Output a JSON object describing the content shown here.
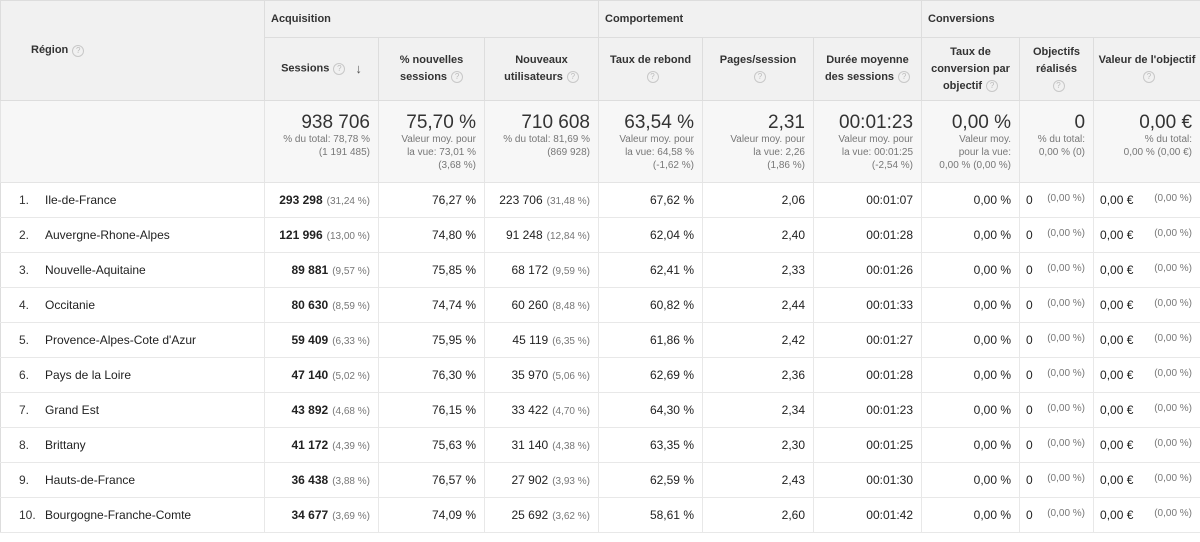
{
  "header": {
    "region_label": "Région",
    "groups": {
      "acquisition": "Acquisition",
      "comportement": "Comportement",
      "conversions": "Conversions"
    },
    "columns": {
      "sessions": "Sessions",
      "pct_new_sessions": "% nouvelles sessions",
      "new_users": "Nouveaux utilisateurs",
      "bounce_rate": "Taux de rebond",
      "pages_session": "Pages/session",
      "avg_duration": "Durée moyenne des sessions",
      "conversion_rate": "Taux de conversion par objectif",
      "goals_completed": "Objectifs réalisés",
      "goal_value": "Valeur de l'objectif"
    },
    "help_glyph": "?",
    "sort_glyph": "↓"
  },
  "totals": {
    "sessions": {
      "value": "938 706",
      "sub1": "% du total: 78,78 %",
      "sub2": "(1 191 485)"
    },
    "pct_new_sessions": {
      "value": "75,70 %",
      "sub1": "Valeur moy. pour",
      "sub2": "la vue: 73,01 %",
      "sub3": "(3,68 %)"
    },
    "new_users": {
      "value": "710 608",
      "sub1": "% du total: 81,69 %",
      "sub2": "(869 928)"
    },
    "bounce_rate": {
      "value": "63,54 %",
      "sub1": "Valeur moy. pour",
      "sub2": "la vue: 64,58 %",
      "sub3": "(-1,62 %)"
    },
    "pages_session": {
      "value": "2,31",
      "sub1": "Valeur moy. pour",
      "sub2": "la vue: 2,26",
      "sub3": "(1,86 %)"
    },
    "avg_duration": {
      "value": "00:01:23",
      "sub1": "Valeur moy. pour",
      "sub2": "la vue: 00:01:25",
      "sub3": "(-2,54 %)"
    },
    "conversion_rate": {
      "value": "0,00 %",
      "sub1": "Valeur moy.",
      "sub2": "pour la vue:",
      "sub3": "0,00 % (0,00 %)"
    },
    "goals_completed": {
      "value": "0",
      "sub1": "% du total:",
      "sub2": "0,00 % (0)"
    },
    "goal_value": {
      "value": "0,00 €",
      "sub1": "% du total:",
      "sub2": "0,00 % (0,00 €)"
    }
  },
  "rows": [
    {
      "idx": "1.",
      "region": "Ile-de-France",
      "sessions": "293 298",
      "sessions_pct": "(31,24 %)",
      "pct_new": "76,27 %",
      "new_users": "223 706",
      "new_users_pct": "(31,48 %)",
      "bounce": "67,62 %",
      "pages": "2,06",
      "duration": "00:01:07",
      "conv": "0,00 %",
      "goals": "0",
      "goals_pct": "(0,00 %)",
      "value": "0,00 €",
      "value_pct": "(0,00 %)"
    },
    {
      "idx": "2.",
      "region": "Auvergne-Rhone-Alpes",
      "sessions": "121 996",
      "sessions_pct": "(13,00 %)",
      "pct_new": "74,80 %",
      "new_users": "91 248",
      "new_users_pct": "(12,84 %)",
      "bounce": "62,04 %",
      "pages": "2,40",
      "duration": "00:01:28",
      "conv": "0,00 %",
      "goals": "0",
      "goals_pct": "(0,00 %)",
      "value": "0,00 €",
      "value_pct": "(0,00 %)"
    },
    {
      "idx": "3.",
      "region": "Nouvelle-Aquitaine",
      "sessions": "89 881",
      "sessions_pct": "(9,57 %)",
      "pct_new": "75,85 %",
      "new_users": "68 172",
      "new_users_pct": "(9,59 %)",
      "bounce": "62,41 %",
      "pages": "2,33",
      "duration": "00:01:26",
      "conv": "0,00 %",
      "goals": "0",
      "goals_pct": "(0,00 %)",
      "value": "0,00 €",
      "value_pct": "(0,00 %)"
    },
    {
      "idx": "4.",
      "region": "Occitanie",
      "sessions": "80 630",
      "sessions_pct": "(8,59 %)",
      "pct_new": "74,74 %",
      "new_users": "60 260",
      "new_users_pct": "(8,48 %)",
      "bounce": "60,82 %",
      "pages": "2,44",
      "duration": "00:01:33",
      "conv": "0,00 %",
      "goals": "0",
      "goals_pct": "(0,00 %)",
      "value": "0,00 €",
      "value_pct": "(0,00 %)"
    },
    {
      "idx": "5.",
      "region": "Provence-Alpes-Cote d'Azur",
      "sessions": "59 409",
      "sessions_pct": "(6,33 %)",
      "pct_new": "75,95 %",
      "new_users": "45 119",
      "new_users_pct": "(6,35 %)",
      "bounce": "61,86 %",
      "pages": "2,42",
      "duration": "00:01:27",
      "conv": "0,00 %",
      "goals": "0",
      "goals_pct": "(0,00 %)",
      "value": "0,00 €",
      "value_pct": "(0,00 %)"
    },
    {
      "idx": "6.",
      "region": "Pays de la Loire",
      "sessions": "47 140",
      "sessions_pct": "(5,02 %)",
      "pct_new": "76,30 %",
      "new_users": "35 970",
      "new_users_pct": "(5,06 %)",
      "bounce": "62,69 %",
      "pages": "2,36",
      "duration": "00:01:28",
      "conv": "0,00 %",
      "goals": "0",
      "goals_pct": "(0,00 %)",
      "value": "0,00 €",
      "value_pct": "(0,00 %)"
    },
    {
      "idx": "7.",
      "region": "Grand Est",
      "sessions": "43 892",
      "sessions_pct": "(4,68 %)",
      "pct_new": "76,15 %",
      "new_users": "33 422",
      "new_users_pct": "(4,70 %)",
      "bounce": "64,30 %",
      "pages": "2,34",
      "duration": "00:01:23",
      "conv": "0,00 %",
      "goals": "0",
      "goals_pct": "(0,00 %)",
      "value": "0,00 €",
      "value_pct": "(0,00 %)"
    },
    {
      "idx": "8.",
      "region": "Brittany",
      "sessions": "41 172",
      "sessions_pct": "(4,39 %)",
      "pct_new": "75,63 %",
      "new_users": "31 140",
      "new_users_pct": "(4,38 %)",
      "bounce": "63,35 %",
      "pages": "2,30",
      "duration": "00:01:25",
      "conv": "0,00 %",
      "goals": "0",
      "goals_pct": "(0,00 %)",
      "value": "0,00 €",
      "value_pct": "(0,00 %)"
    },
    {
      "idx": "9.",
      "region": "Hauts-de-France",
      "sessions": "36 438",
      "sessions_pct": "(3,88 %)",
      "pct_new": "76,57 %",
      "new_users": "27 902",
      "new_users_pct": "(3,93 %)",
      "bounce": "62,59 %",
      "pages": "2,43",
      "duration": "00:01:30",
      "conv": "0,00 %",
      "goals": "0",
      "goals_pct": "(0,00 %)",
      "value": "0,00 €",
      "value_pct": "(0,00 %)"
    },
    {
      "idx": "10.",
      "region": "Bourgogne-Franche-Comte",
      "sessions": "34 677",
      "sessions_pct": "(3,69 %)",
      "pct_new": "74,09 %",
      "new_users": "25 692",
      "new_users_pct": "(3,62 %)",
      "bounce": "58,61 %",
      "pages": "2,60",
      "duration": "00:01:42",
      "conv": "0,00 %",
      "goals": "0",
      "goals_pct": "(0,00 %)",
      "value": "0,00 €",
      "value_pct": "(0,00 %)"
    }
  ]
}
